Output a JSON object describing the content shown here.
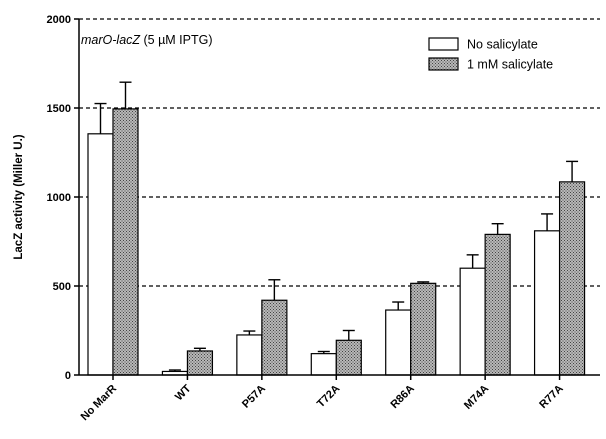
{
  "chart_data": {
    "type": "bar",
    "ylabel": "LacZ activity (Miller U.)",
    "xlabel": "",
    "ylim": [
      0,
      2000
    ],
    "yticks": [
      0,
      500,
      1000,
      1500,
      2000
    ],
    "grid": "dashed horizontal at 500, 1000, 1500, 2000",
    "legend_position": "top-right",
    "annotation": {
      "italic_part": "marO-lacZ",
      "normal_part": " (5 µM IPTG)"
    },
    "categories": [
      "No MarR",
      "WT",
      "P57A",
      "T72A",
      "R86A",
      "M74A",
      "R77A"
    ],
    "series": [
      {
        "name": "No salicylate",
        "fill": "#ffffff",
        "values": [
          1355,
          20,
          225,
          120,
          365,
          600,
          810
        ],
        "errors": [
          170,
          8,
          22,
          12,
          45,
          75,
          95
        ]
      },
      {
        "name": "1 mM salicylate",
        "fill": "#a6a6a6",
        "values": [
          1495,
          135,
          420,
          195,
          515,
          790,
          1085
        ],
        "errors": [
          150,
          15,
          115,
          55,
          8,
          60,
          115
        ]
      }
    ]
  }
}
